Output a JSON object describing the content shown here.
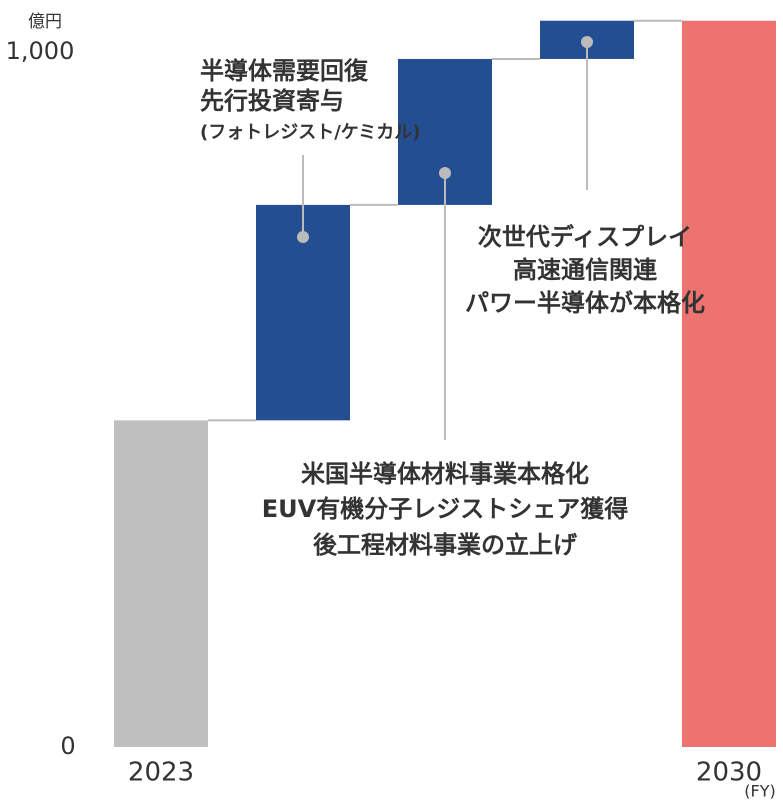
{
  "chart_data": {
    "type": "waterfall",
    "y_unit": "億円",
    "x_unit": "(FY)",
    "categories": [
      "2023",
      null,
      null,
      null,
      "2030"
    ],
    "values": [
      470,
      310,
      210,
      55,
      1045
    ],
    "measures": [
      "absolute",
      "relative",
      "relative",
      "relative",
      "total"
    ],
    "colors": [
      "#bfbfbf",
      "#234e91",
      "#234e91",
      "#234e91",
      "#ec7370"
    ],
    "ylim": [
      0,
      1000
    ],
    "yticks": [
      0,
      {
        "value": 1000,
        "label": "1,000"
      }
    ],
    "annotations": [
      {
        "bar": 1,
        "lines": [
          "半導体需要回復",
          "先行投資寄与",
          "(フォトレジスト/ケミカル)"
        ]
      },
      {
        "bar": 2,
        "lines": [
          "米国半導体材料事業本格化",
          "EUV有機分子レジストシェア獲得",
          "後工程材料事業の立上げ"
        ]
      },
      {
        "bar": 3,
        "lines": [
          "次世代ディスプレイ",
          "高速通信関連",
          "パワー半導体が本格化"
        ]
      }
    ]
  }
}
